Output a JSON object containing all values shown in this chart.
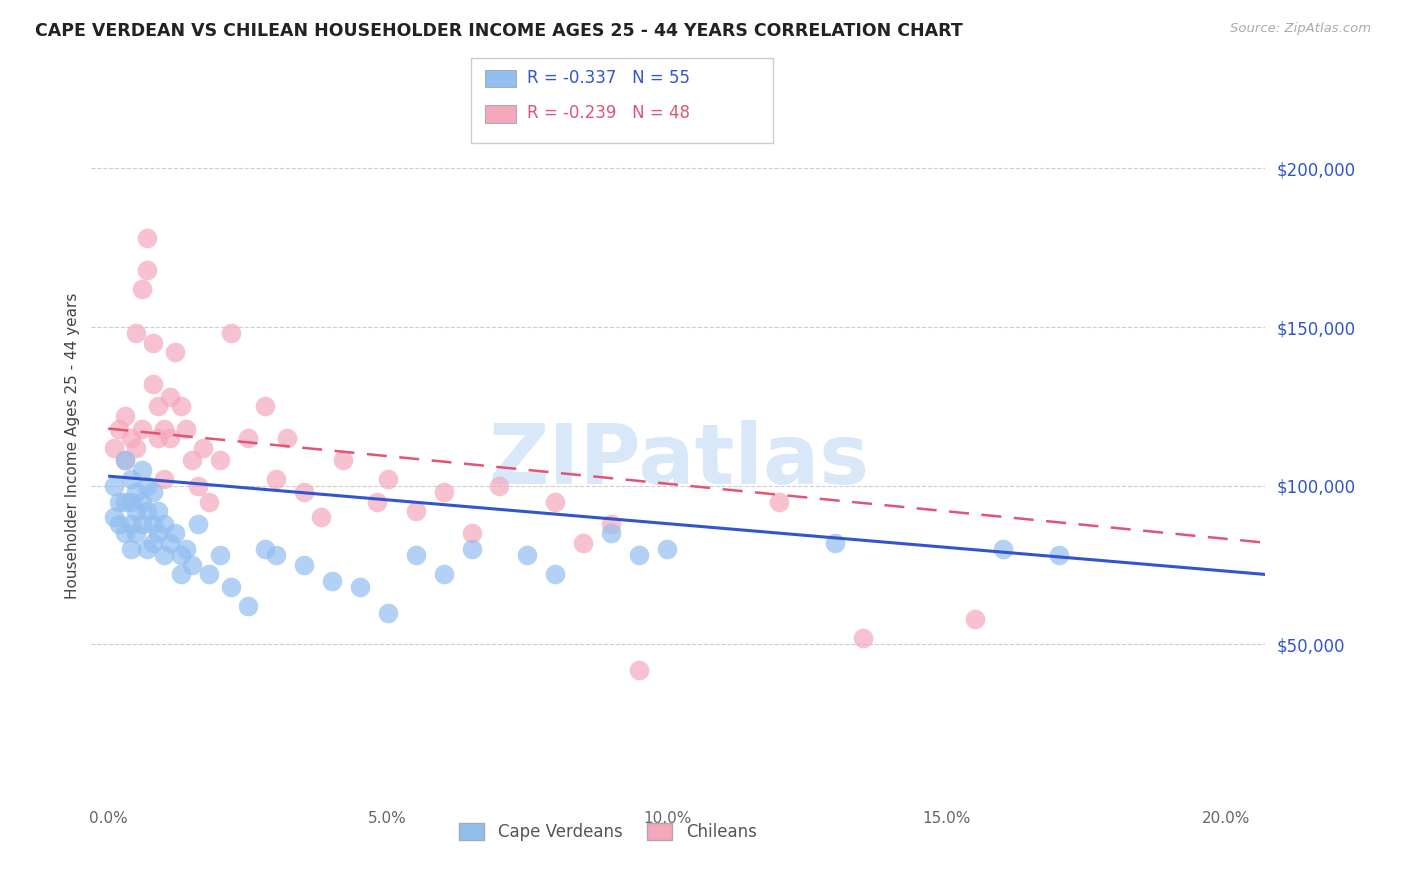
{
  "title": "CAPE VERDEAN VS CHILEAN HOUSEHOLDER INCOME AGES 25 - 44 YEARS CORRELATION CHART",
  "source": "Source: ZipAtlas.com",
  "ylabel": "Householder Income Ages 25 - 44 years",
  "xlabel_ticks": [
    "0.0%",
    "5.0%",
    "10.0%",
    "15.0%",
    "20.0%"
  ],
  "xlabel_vals": [
    0.0,
    0.05,
    0.1,
    0.15,
    0.2
  ],
  "ylabel_right_ticks": [
    "$200,000",
    "$150,000",
    "$100,000",
    "$50,000"
  ],
  "ylabel_right_vals": [
    200000,
    150000,
    100000,
    50000
  ],
  "ylim": [
    0,
    225000
  ],
  "xlim": [
    -0.003,
    0.207
  ],
  "blue_color": "#92BEF0",
  "pink_color": "#F5A8BB",
  "blue_line_color": "#3355CC",
  "pink_line_color": "#E05575",
  "watermark_text": "ZIPatlas",
  "watermark_color": "#D8E8F8",
  "legend_label_blue": "Cape Verdeans",
  "legend_label_pink": "Chileans",
  "blue_R": "R = -0.337",
  "blue_N": "N = 55",
  "pink_R": "R = -0.239",
  "pink_N": "N = 48",
  "blue_x": [
    0.001,
    0.001,
    0.002,
    0.002,
    0.003,
    0.003,
    0.003,
    0.004,
    0.004,
    0.004,
    0.004,
    0.005,
    0.005,
    0.005,
    0.006,
    0.006,
    0.006,
    0.007,
    0.007,
    0.007,
    0.008,
    0.008,
    0.008,
    0.009,
    0.009,
    0.01,
    0.01,
    0.011,
    0.012,
    0.013,
    0.013,
    0.014,
    0.015,
    0.016,
    0.018,
    0.02,
    0.022,
    0.025,
    0.028,
    0.03,
    0.035,
    0.04,
    0.045,
    0.05,
    0.055,
    0.06,
    0.065,
    0.075,
    0.08,
    0.09,
    0.095,
    0.1,
    0.13,
    0.16,
    0.17
  ],
  "blue_y": [
    100000,
    90000,
    95000,
    88000,
    108000,
    95000,
    85000,
    102000,
    95000,
    88000,
    80000,
    98000,
    92000,
    85000,
    105000,
    95000,
    88000,
    100000,
    92000,
    80000,
    98000,
    88000,
    82000,
    92000,
    85000,
    78000,
    88000,
    82000,
    85000,
    78000,
    72000,
    80000,
    75000,
    88000,
    72000,
    78000,
    68000,
    62000,
    80000,
    78000,
    75000,
    70000,
    68000,
    60000,
    78000,
    72000,
    80000,
    78000,
    72000,
    85000,
    78000,
    80000,
    82000,
    80000,
    78000
  ],
  "pink_x": [
    0.001,
    0.002,
    0.003,
    0.003,
    0.004,
    0.005,
    0.005,
    0.006,
    0.006,
    0.007,
    0.007,
    0.008,
    0.008,
    0.009,
    0.009,
    0.01,
    0.01,
    0.011,
    0.011,
    0.012,
    0.013,
    0.014,
    0.015,
    0.016,
    0.017,
    0.018,
    0.02,
    0.022,
    0.025,
    0.028,
    0.03,
    0.032,
    0.035,
    0.038,
    0.042,
    0.048,
    0.05,
    0.055,
    0.06,
    0.065,
    0.07,
    0.08,
    0.085,
    0.09,
    0.095,
    0.12,
    0.135,
    0.155
  ],
  "pink_y": [
    112000,
    118000,
    122000,
    108000,
    115000,
    112000,
    148000,
    162000,
    118000,
    178000,
    168000,
    145000,
    132000,
    125000,
    115000,
    118000,
    102000,
    128000,
    115000,
    142000,
    125000,
    118000,
    108000,
    100000,
    112000,
    95000,
    108000,
    148000,
    115000,
    125000,
    102000,
    115000,
    98000,
    90000,
    108000,
    95000,
    102000,
    92000,
    98000,
    85000,
    100000,
    95000,
    82000,
    88000,
    42000,
    95000,
    52000,
    58000
  ],
  "blue_trendline_x": [
    0.0,
    0.207
  ],
  "blue_trendline_y": [
    103000,
    72000
  ],
  "pink_trendline_x": [
    0.0,
    0.207
  ],
  "pink_trendline_y": [
    118000,
    82000
  ]
}
